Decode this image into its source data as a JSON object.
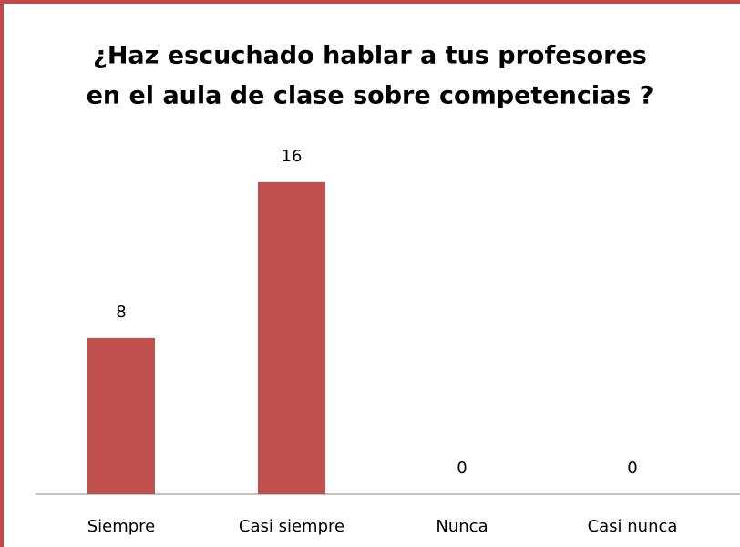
{
  "chart_data": {
    "type": "bar",
    "title": [
      "¿Haz escuchado hablar a tus profesores",
      "en el aula de clase sobre competencias ?"
    ],
    "categories": [
      "Siempre",
      "Casi siempre",
      "Nunca",
      "Casi nunca"
    ],
    "values": [
      8,
      16,
      0,
      0
    ],
    "color": "#c0504d",
    "ylim": [
      0,
      18
    ]
  }
}
